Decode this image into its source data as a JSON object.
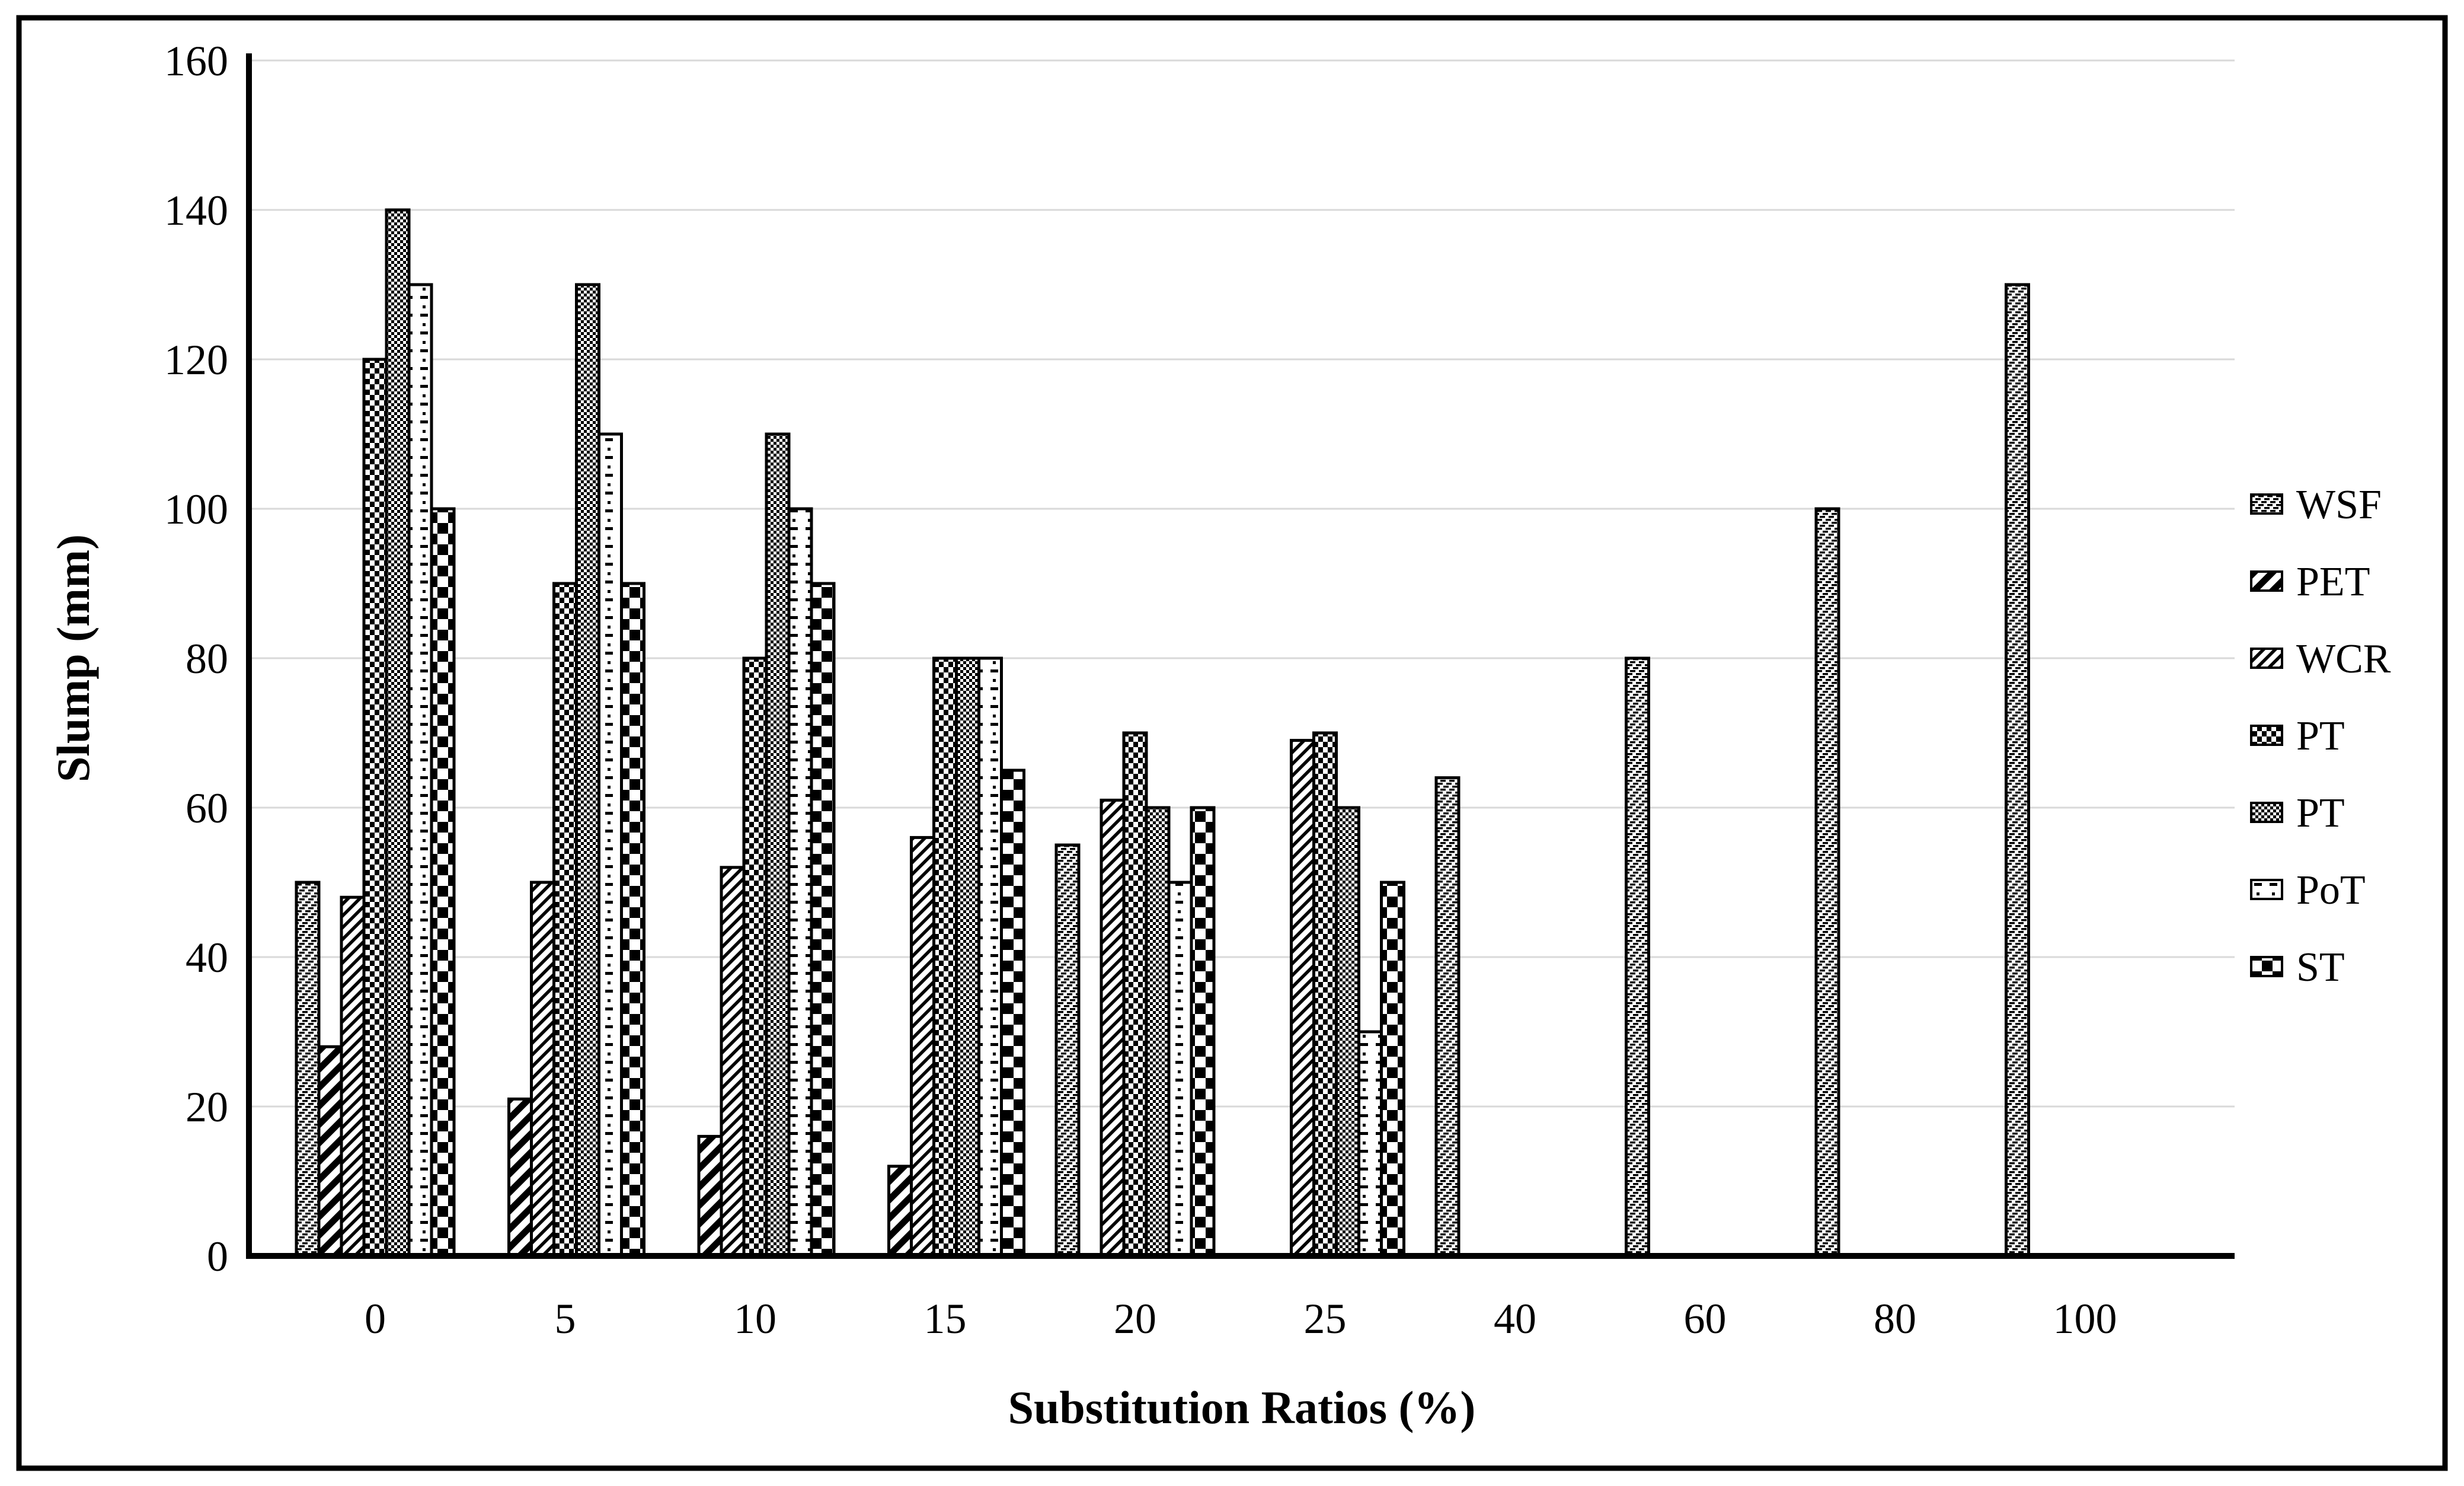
{
  "figure": {
    "background": "#ffffff",
    "border_color": "#000000"
  },
  "colors": {
    "bar_fill": "#ffffff",
    "bar_stroke": "#000000",
    "grid": "#d9d9d9",
    "axis": "#000000",
    "text": "#000000"
  },
  "chart_data": {
    "type": "bar",
    "title": "",
    "xlabel": "Substitution Ratios (%)",
    "ylabel": "Slump (mm)",
    "categories": [
      "0",
      "5",
      "10",
      "15",
      "20",
      "25",
      "40",
      "60",
      "80",
      "100"
    ],
    "ylim": [
      0,
      160
    ],
    "ytick_step": 20,
    "ytick_labels": [
      "0",
      "20",
      "40",
      "60",
      "80",
      "100",
      "120",
      "140",
      "160"
    ],
    "grid": true,
    "legend_position": "right",
    "series": [
      {
        "name": "WSF",
        "pattern": "wsf",
        "values": [
          50,
          null,
          null,
          null,
          55,
          null,
          64,
          80,
          100,
          130
        ]
      },
      {
        "name": "PET",
        "pattern": "pet",
        "values": [
          28,
          21,
          16,
          12,
          null,
          null,
          null,
          null,
          null,
          null
        ]
      },
      {
        "name": "WCR",
        "pattern": "wcr",
        "values": [
          48,
          50,
          52,
          56,
          61,
          69,
          null,
          null,
          null,
          null
        ]
      },
      {
        "name": "PT",
        "pattern": "pt-small",
        "values": [
          120,
          90,
          80,
          80,
          70,
          70,
          null,
          null,
          null,
          null
        ]
      },
      {
        "name": "PT",
        "pattern": "pt-fine",
        "values": [
          140,
          130,
          110,
          80,
          60,
          60,
          null,
          null,
          null,
          null
        ]
      },
      {
        "name": "PoT",
        "pattern": "pot",
        "values": [
          130,
          110,
          100,
          80,
          50,
          30,
          null,
          null,
          null,
          null
        ]
      },
      {
        "name": "ST",
        "pattern": "st",
        "values": [
          100,
          90,
          90,
          65,
          60,
          50,
          null,
          null,
          null,
          null
        ]
      }
    ]
  }
}
